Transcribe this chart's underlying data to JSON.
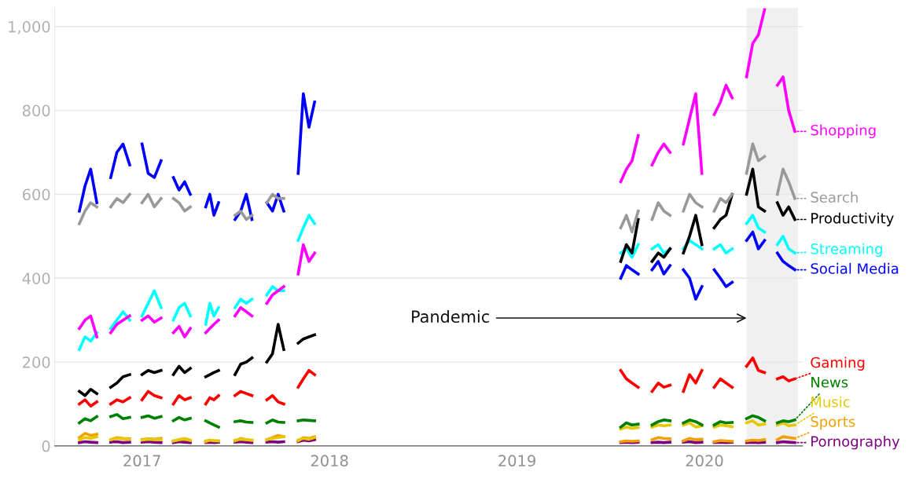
{
  "chart_data": {
    "type": "line",
    "x": [
      "2016-09-01",
      "2016-09-12",
      "2016-09-23",
      "2016-10-05",
      "2016-10-18",
      "2016-11-01",
      "2016-11-13",
      "2016-11-25",
      "2016-12-08",
      "2016-12-20",
      "2017-01-01",
      "2017-01-13",
      "2017-01-25",
      "2017-02-07",
      "2017-02-20",
      "2017-03-03",
      "2017-03-14",
      "2017-03-25",
      "2017-04-05",
      "2017-04-20",
      "2017-05-05",
      "2017-05-13",
      "2017-05-21",
      "2017-05-30",
      "2017-06-15",
      "2017-07-01",
      "2017-07-12",
      "2017-07-23",
      "2017-08-03",
      "2017-08-18",
      "2017-09-01",
      "2017-09-12",
      "2017-09-23",
      "2017-10-04",
      "2017-10-18",
      "2017-11-01",
      "2017-11-11",
      "2017-11-22",
      "2017-12-03",
      "2018-06-01",
      "2019-07-22",
      "2019-08-02",
      "2019-08-13",
      "2019-08-25",
      "2019-09-08",
      "2019-09-21",
      "2019-10-03",
      "2019-10-14",
      "2019-10-26",
      "2019-11-08",
      "2019-11-21",
      "2019-12-03",
      "2019-12-15",
      "2019-12-27",
      "2020-01-08",
      "2020-01-20",
      "2020-02-01",
      "2020-02-12",
      "2020-02-24",
      "2020-03-08",
      "2020-03-23",
      "2020-04-04",
      "2020-04-15",
      "2020-04-27",
      "2020-05-10",
      "2020-05-22",
      "2020-06-02",
      "2020-06-13",
      "2020-06-25"
    ],
    "series": [
      {
        "name": "Shopping",
        "color": "#ff00ff",
        "values": [
          280,
          300,
          310,
          260,
          null,
          270,
          290,
          300,
          310,
          null,
          300,
          310,
          295,
          305,
          null,
          270,
          285,
          260,
          280,
          null,
          270,
          280,
          290,
          300,
          null,
          310,
          330,
          320,
          310,
          null,
          340,
          360,
          370,
          380,
          null,
          410,
          480,
          440,
          460,
          null,
          630,
          660,
          680,
          740,
          null,
          670,
          700,
          720,
          700,
          null,
          720,
          780,
          840,
          650,
          null,
          790,
          820,
          860,
          830,
          null,
          880,
          960,
          980,
          1040,
          null,
          860,
          880,
          800,
          750
        ]
      },
      {
        "name": "Search",
        "color": "#999999",
        "values": [
          530,
          560,
          580,
          570,
          null,
          570,
          590,
          580,
          600,
          null,
          580,
          600,
          570,
          590,
          null,
          590,
          580,
          560,
          570,
          null,
          null,
          null,
          null,
          null,
          null,
          550,
          560,
          540,
          550,
          null,
          580,
          600,
          590,
          590,
          null,
          null,
          null,
          null,
          null,
          null,
          520,
          550,
          510,
          560,
          null,
          540,
          580,
          560,
          550,
          null,
          560,
          600,
          580,
          570,
          null,
          560,
          590,
          580,
          600,
          null,
          650,
          720,
          680,
          690,
          null,
          600,
          660,
          630,
          590
        ]
      },
      {
        "name": "Productivity",
        "color": "#000000",
        "values": [
          130,
          120,
          135,
          125,
          null,
          140,
          150,
          165,
          170,
          null,
          170,
          180,
          175,
          180,
          null,
          170,
          190,
          175,
          185,
          null,
          165,
          170,
          175,
          180,
          null,
          170,
          195,
          200,
          210,
          null,
          200,
          220,
          290,
          230,
          null,
          245,
          255,
          260,
          265,
          null,
          440,
          480,
          460,
          540,
          null,
          440,
          460,
          450,
          470,
          null,
          460,
          500,
          550,
          480,
          null,
          520,
          540,
          550,
          600,
          null,
          600,
          660,
          570,
          560,
          null,
          580,
          550,
          570,
          540
        ]
      },
      {
        "name": "Streaming",
        "color": "#00ffff",
        "values": [
          230,
          260,
          250,
          270,
          null,
          280,
          300,
          320,
          300,
          null,
          310,
          340,
          370,
          330,
          null,
          300,
          330,
          340,
          310,
          null,
          290,
          340,
          310,
          330,
          null,
          330,
          350,
          340,
          350,
          null,
          360,
          380,
          370,
          370,
          null,
          490,
          520,
          550,
          530,
          null,
          460,
          470,
          450,
          480,
          null,
          470,
          480,
          460,
          470,
          null,
          470,
          490,
          480,
          470,
          null,
          470,
          480,
          460,
          470,
          null,
          530,
          550,
          520,
          510,
          null,
          480,
          500,
          470,
          460
        ]
      },
      {
        "name": "Social Media",
        "color": "#0000ff",
        "values": [
          560,
          620,
          660,
          580,
          null,
          640,
          700,
          720,
          670,
          null,
          720,
          650,
          640,
          680,
          null,
          640,
          610,
          630,
          600,
          null,
          570,
          600,
          550,
          580,
          null,
          540,
          560,
          600,
          540,
          null,
          580,
          560,
          600,
          560,
          null,
          650,
          840,
          760,
          820,
          null,
          400,
          430,
          420,
          410,
          null,
          420,
          440,
          410,
          430,
          null,
          420,
          400,
          350,
          380,
          null,
          420,
          400,
          380,
          390,
          null,
          490,
          510,
          470,
          490,
          null,
          460,
          440,
          430,
          420
        ]
      },
      {
        "name": "Gaming",
        "color": "#ff0000",
        "values": [
          100,
          110,
          95,
          105,
          null,
          100,
          110,
          105,
          115,
          null,
          110,
          130,
          120,
          115,
          null,
          100,
          120,
          110,
          115,
          null,
          100,
          115,
          110,
          120,
          null,
          120,
          130,
          125,
          120,
          null,
          110,
          120,
          105,
          100,
          null,
          140,
          160,
          180,
          170,
          null,
          180,
          160,
          150,
          140,
          null,
          130,
          150,
          140,
          145,
          null,
          130,
          170,
          150,
          180,
          null,
          140,
          160,
          150,
          140,
          null,
          190,
          210,
          180,
          175,
          null,
          160,
          165,
          155,
          160
        ]
      },
      {
        "name": "News",
        "color": "#008000",
        "values": [
          55,
          65,
          60,
          70,
          null,
          70,
          75,
          65,
          68,
          null,
          68,
          72,
          66,
          70,
          null,
          60,
          68,
          62,
          66,
          null,
          60,
          55,
          50,
          45,
          null,
          58,
          60,
          57,
          56,
          null,
          55,
          62,
          57,
          56,
          null,
          60,
          62,
          61,
          60,
          null,
          45,
          55,
          50,
          52,
          null,
          50,
          58,
          62,
          60,
          null,
          55,
          62,
          58,
          50,
          null,
          50,
          58,
          55,
          56,
          null,
          65,
          72,
          68,
          60,
          null,
          55,
          60,
          58,
          62
        ]
      },
      {
        "name": "Music",
        "color": "#e6c800",
        "values": [
          15,
          20,
          18,
          22,
          null,
          15,
          18,
          17,
          16,
          null,
          14,
          16,
          15,
          15,
          null,
          12,
          15,
          18,
          14,
          null,
          12,
          14,
          13,
          12,
          null,
          14,
          16,
          15,
          14,
          null,
          15,
          18,
          20,
          22,
          null,
          14,
          18,
          16,
          20,
          null,
          40,
          45,
          42,
          44,
          null,
          45,
          50,
          48,
          50,
          null,
          50,
          55,
          45,
          48,
          null,
          45,
          50,
          48,
          46,
          null,
          55,
          60,
          50,
          52,
          null,
          50,
          55,
          48,
          50
        ]
      },
      {
        "name": "Sports",
        "color": "#f0a000",
        "values": [
          20,
          30,
          25,
          28,
          null,
          15,
          20,
          18,
          17,
          null,
          15,
          17,
          16,
          18,
          null,
          12,
          15,
          16,
          13,
          null,
          10,
          14,
          12,
          12,
          null,
          12,
          18,
          15,
          13,
          null,
          15,
          20,
          25,
          22,
          null,
          12,
          20,
          18,
          22,
          null,
          10,
          12,
          11,
          12,
          null,
          15,
          20,
          18,
          17,
          null,
          12,
          18,
          15,
          16,
          null,
          10,
          13,
          12,
          11,
          null,
          12,
          14,
          13,
          15,
          null,
          15,
          22,
          20,
          18
        ]
      },
      {
        "name": "Pornography",
        "color": "#800080",
        "values": [
          8,
          10,
          9,
          8,
          null,
          9,
          10,
          8,
          9,
          null,
          9,
          10,
          9,
          8,
          null,
          8,
          10,
          9,
          8,
          null,
          8,
          9,
          8,
          9,
          null,
          9,
          10,
          9,
          8,
          null,
          9,
          10,
          9,
          10,
          null,
          10,
          14,
          12,
          15,
          null,
          8,
          9,
          8,
          9,
          null,
          8,
          9,
          8,
          9,
          null,
          9,
          10,
          8,
          9,
          null,
          8,
          9,
          8,
          9,
          null,
          8,
          9,
          8,
          9,
          null,
          8,
          10,
          9,
          8
        ]
      }
    ],
    "ylim": [
      0,
      1045
    ],
    "yticks": [
      0,
      200,
      400,
      600,
      800,
      {
        "value": 1000,
        "label": "1,000"
      }
    ],
    "xlim": [
      "2016-07-15",
      "2020-07-10"
    ],
    "xticks": [
      {
        "value": "2017-01-01",
        "label": "2017"
      },
      {
        "value": "2018-01-01",
        "label": "2018"
      },
      {
        "value": "2019-01-01",
        "label": "2019"
      },
      {
        "value": "2020-01-01",
        "label": "2020"
      }
    ],
    "bands": [
      {
        "axis": "x",
        "from": "2020-03-23",
        "to": "2020-07-01",
        "color": "#f0f0f0"
      }
    ],
    "annotations": [
      {
        "text": "Pandemic",
        "x": "2020-03-23",
        "y": 305
      }
    ],
    "grid": "y",
    "legend": "right",
    "marker": "none",
    "line_style": "solid"
  }
}
